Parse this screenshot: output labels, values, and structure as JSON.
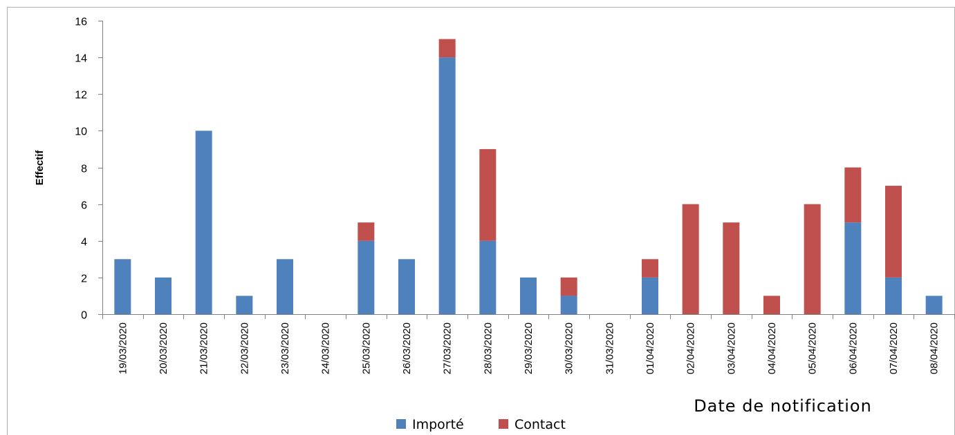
{
  "chart_data": {
    "type": "bar",
    "stacked": true,
    "categories": [
      "19/03/2020",
      "20/03/2020",
      "21/03/2020",
      "22/03/2020",
      "23/03/2020",
      "24/03/2020",
      "25/03/2020",
      "26/03/2020",
      "27/03/2020",
      "28/03/2020",
      "29/03/2020",
      "30/03/2020",
      "31/03/2020",
      "01/04/2020",
      "02/04/2020",
      "03/04/2020",
      "04/04/2020",
      "05/04/2020",
      "06/04/2020",
      "07/04/2020",
      "08/04/2020"
    ],
    "series": [
      {
        "name": "Importé",
        "color": "#4f81bd",
        "values": [
          3,
          2,
          10,
          1,
          3,
          0,
          4,
          3,
          14,
          4,
          2,
          1,
          0,
          2,
          0,
          0,
          0,
          0,
          5,
          2,
          1
        ]
      },
      {
        "name": "Contact",
        "color": "#c0504d",
        "values": [
          0,
          0,
          0,
          0,
          0,
          0,
          1,
          0,
          1,
          5,
          0,
          1,
          0,
          1,
          6,
          5,
          1,
          6,
          3,
          5,
          0
        ]
      }
    ],
    "xlabel": "Date de notification",
    "ylabel": "Effectif",
    "ylim": [
      0,
      16
    ],
    "yticks": [
      0,
      2,
      4,
      6,
      8,
      10,
      12,
      14,
      16
    ],
    "grid": false,
    "legend_position": "bottom-center"
  }
}
